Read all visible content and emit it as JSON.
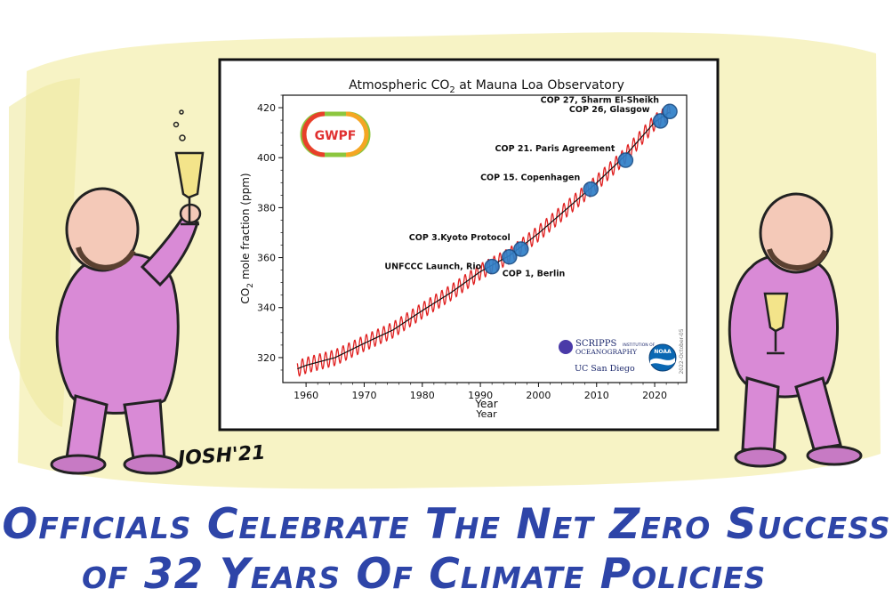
{
  "signature": "JOSH'21",
  "caption": {
    "line1": "Officials Celebrate The Net Zero Success",
    "line2": "of 32 Years Of Climate Policies"
  },
  "chart_data": {
    "type": "line",
    "title_main": "Atmospheric CO",
    "title_sub": "2",
    "title_rest": " at Mauna Loa Observatory",
    "ylabel_main": "CO",
    "ylabel_sub": "2",
    "ylabel_rest": " mole fraction (ppm)",
    "xlabel": "Year",
    "xlabel_dup": "Year",
    "xlim": [
      1956,
      2025.5
    ],
    "ylim": [
      310,
      425
    ],
    "xticks": [
      1960,
      1970,
      1980,
      1990,
      2000,
      2010,
      2020
    ],
    "yticks": [
      320,
      340,
      360,
      380,
      400,
      420
    ],
    "grid": false,
    "date_note": "2022-October-05",
    "logo": "GWPF",
    "scripps_line1": "SCRIPPS",
    "scripps_line2": "OCEANOGRAPHY",
    "scripps_small": "INSTITUTION OF",
    "ucsd": "UC San Diego",
    "noaa": "NOAA",
    "series": [
      {
        "kind": "monthly",
        "color": "#e02020"
      },
      {
        "kind": "trend",
        "color": "#111111"
      }
    ],
    "trend_points": [
      [
        1958.5,
        315.5
      ],
      [
        1960,
        316.9
      ],
      [
        1965,
        320.0
      ],
      [
        1970,
        325.7
      ],
      [
        1975,
        331.1
      ],
      [
        1980,
        338.8
      ],
      [
        1985,
        346.1
      ],
      [
        1990,
        354.4
      ],
      [
        1995,
        360.8
      ],
      [
        2000,
        369.7
      ],
      [
        2005,
        379.8
      ],
      [
        2010,
        389.9
      ],
      [
        2015,
        401.0
      ],
      [
        2020,
        414.2
      ],
      [
        2022.7,
        418.5
      ]
    ],
    "seasonal_amplitude": 3.2,
    "annotations": [
      {
        "year": 1992,
        "value": 356.4,
        "label": "UNFCCC Launch, Rio",
        "side": "left"
      },
      {
        "year": 1995,
        "value": 360.3,
        "label": "COP 1, Berlin",
        "side": "below-right"
      },
      {
        "year": 1997,
        "value": 363.4,
        "label": "COP 3.Kyoto Protocol",
        "side": "left"
      },
      {
        "year": 2009,
        "value": 387.4,
        "label": "COP 15. Copenhagen",
        "side": "left"
      },
      {
        "year": 2015,
        "value": 399.0,
        "label": "COP 21. Paris Agreement",
        "side": "left"
      },
      {
        "year": 2021,
        "value": 414.7,
        "label": "COP 26, Glasgow",
        "side": "left"
      },
      {
        "year": 2022.6,
        "value": 418.5,
        "label": "COP 27, Sharm El-Sheikh",
        "side": "left"
      }
    ]
  }
}
